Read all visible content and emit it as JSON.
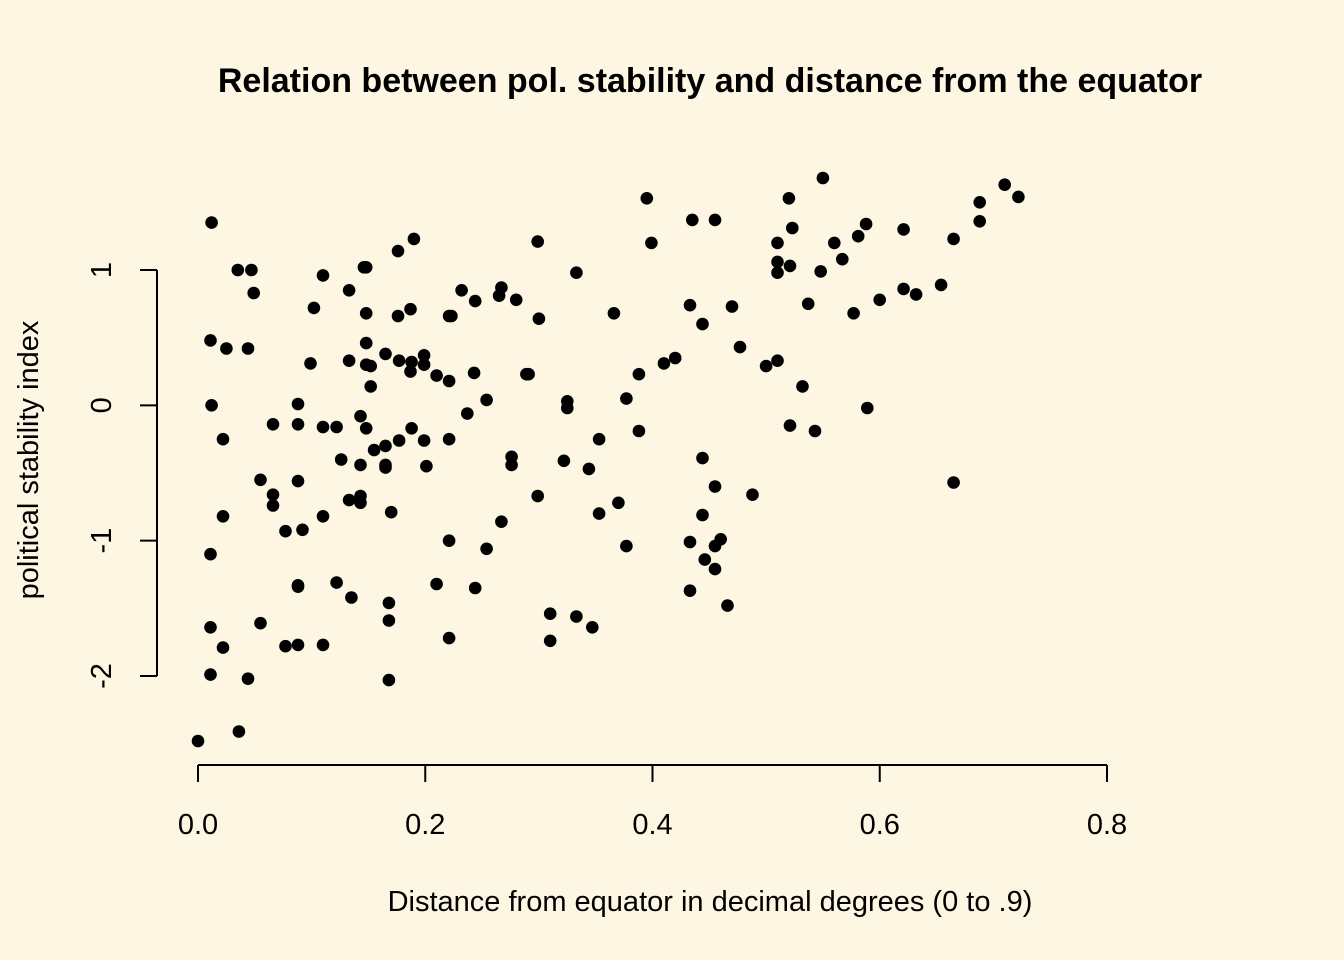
{
  "chart_data": {
    "type": "scatter",
    "title": "Relation between pol. stability and distance from the equator",
    "xlabel": "Distance from equator in decimal degrees (0 to .9)",
    "ylabel": "political stability index",
    "xlim": [
      0,
      0.8
    ],
    "ylim": [
      -2.5,
      1.7
    ],
    "x_ticks": [
      0,
      0.2,
      0.4,
      0.6,
      0.8
    ],
    "x_tick_labels": [
      "0.0",
      "0.2",
      "0.4",
      "0.6",
      "0.8"
    ],
    "y_ticks": [
      -2,
      -1,
      0,
      1
    ],
    "y_tick_labels": [
      "-2",
      "-1",
      "0",
      "1"
    ],
    "grid": false,
    "background": "#fdf6e3",
    "point_color": "#000000",
    "series": [
      {
        "points": [
          [
            0.0,
            -2.48
          ],
          [
            0.012,
            1.35
          ],
          [
            0.011,
            0.48
          ],
          [
            0.012,
            0.0
          ],
          [
            0.011,
            -1.1
          ],
          [
            0.011,
            -1.64
          ],
          [
            0.011,
            -1.99
          ],
          [
            0.022,
            -0.25
          ],
          [
            0.022,
            -0.82
          ],
          [
            0.022,
            -1.79
          ],
          [
            0.025,
            0.42
          ],
          [
            0.035,
            1.0
          ],
          [
            0.047,
            1.0
          ],
          [
            0.049,
            0.83
          ],
          [
            0.044,
            0.42
          ],
          [
            0.044,
            -2.02
          ],
          [
            0.036,
            -2.41
          ],
          [
            0.055,
            -0.55
          ],
          [
            0.055,
            -1.61
          ],
          [
            0.066,
            -0.14
          ],
          [
            0.066,
            -0.66
          ],
          [
            0.066,
            -0.74
          ],
          [
            0.077,
            -0.93
          ],
          [
            0.077,
            -1.78
          ],
          [
            0.088,
            0.01
          ],
          [
            0.088,
            -0.14
          ],
          [
            0.088,
            -0.56
          ],
          [
            0.088,
            -1.33
          ],
          [
            0.088,
            -1.34
          ],
          [
            0.088,
            -1.77
          ],
          [
            0.092,
            -0.92
          ],
          [
            0.099,
            0.31
          ],
          [
            0.102,
            0.72
          ],
          [
            0.11,
            0.96
          ],
          [
            0.11,
            -0.16
          ],
          [
            0.11,
            -0.82
          ],
          [
            0.11,
            -1.77
          ],
          [
            0.122,
            -0.16
          ],
          [
            0.122,
            -1.31
          ],
          [
            0.126,
            -0.4
          ],
          [
            0.133,
            0.85
          ],
          [
            0.133,
            0.33
          ],
          [
            0.133,
            -0.7
          ],
          [
            0.135,
            -1.42
          ],
          [
            0.143,
            -0.08
          ],
          [
            0.143,
            -0.44
          ],
          [
            0.143,
            -0.67
          ],
          [
            0.143,
            -0.72
          ],
          [
            0.146,
            1.02
          ],
          [
            0.148,
            1.02
          ],
          [
            0.148,
            0.68
          ],
          [
            0.148,
            0.46
          ],
          [
            0.148,
            0.3
          ],
          [
            0.148,
            -0.17
          ],
          [
            0.152,
            0.14
          ],
          [
            0.152,
            0.29
          ],
          [
            0.155,
            -0.33
          ],
          [
            0.165,
            0.38
          ],
          [
            0.165,
            -0.3
          ],
          [
            0.165,
            -0.44
          ],
          [
            0.165,
            -0.46
          ],
          [
            0.168,
            -1.46
          ],
          [
            0.168,
            -1.59
          ],
          [
            0.168,
            -2.03
          ],
          [
            0.17,
            -0.79
          ],
          [
            0.176,
            1.14
          ],
          [
            0.176,
            0.66
          ],
          [
            0.177,
            0.33
          ],
          [
            0.177,
            -0.26
          ],
          [
            0.187,
            0.71
          ],
          [
            0.187,
            0.25
          ],
          [
            0.188,
            0.32
          ],
          [
            0.188,
            -0.17
          ],
          [
            0.19,
            1.23
          ],
          [
            0.199,
            0.37
          ],
          [
            0.199,
            0.3
          ],
          [
            0.199,
            -0.26
          ],
          [
            0.201,
            -0.45
          ],
          [
            0.21,
            0.22
          ],
          [
            0.21,
            -1.32
          ],
          [
            0.221,
            0.66
          ],
          [
            0.221,
            0.18
          ],
          [
            0.221,
            -0.25
          ],
          [
            0.221,
            -1.0
          ],
          [
            0.221,
            -1.72
          ],
          [
            0.223,
            0.66
          ],
          [
            0.232,
            0.85
          ],
          [
            0.237,
            -0.06
          ],
          [
            0.243,
            0.24
          ],
          [
            0.244,
            0.77
          ],
          [
            0.244,
            -1.35
          ],
          [
            0.254,
            0.04
          ],
          [
            0.254,
            -1.06
          ],
          [
            0.265,
            0.81
          ],
          [
            0.267,
            0.87
          ],
          [
            0.267,
            -0.86
          ],
          [
            0.276,
            -0.38
          ],
          [
            0.276,
            -0.44
          ],
          [
            0.28,
            0.78
          ],
          [
            0.289,
            0.23
          ],
          [
            0.291,
            0.23
          ],
          [
            0.299,
            1.21
          ],
          [
            0.299,
            -0.67
          ],
          [
            0.3,
            0.64
          ],
          [
            0.31,
            -1.54
          ],
          [
            0.31,
            -1.74
          ],
          [
            0.322,
            -0.41
          ],
          [
            0.325,
            0.03
          ],
          [
            0.325,
            -0.02
          ],
          [
            0.333,
            0.98
          ],
          [
            0.333,
            -1.56
          ],
          [
            0.344,
            -0.47
          ],
          [
            0.347,
            -1.64
          ],
          [
            0.353,
            -0.8
          ],
          [
            0.353,
            -0.25
          ],
          [
            0.366,
            0.68
          ],
          [
            0.37,
            -0.72
          ],
          [
            0.377,
            0.05
          ],
          [
            0.377,
            -1.04
          ],
          [
            0.388,
            0.23
          ],
          [
            0.388,
            -0.19
          ],
          [
            0.395,
            1.53
          ],
          [
            0.399,
            1.2
          ],
          [
            0.41,
            0.31
          ],
          [
            0.42,
            0.35
          ],
          [
            0.433,
            0.74
          ],
          [
            0.433,
            -1.01
          ],
          [
            0.433,
            -1.37
          ],
          [
            0.435,
            1.37
          ],
          [
            0.444,
            0.6
          ],
          [
            0.444,
            -0.39
          ],
          [
            0.444,
            -0.81
          ],
          [
            0.446,
            -1.14
          ],
          [
            0.455,
            1.37
          ],
          [
            0.455,
            -0.6
          ],
          [
            0.455,
            -1.04
          ],
          [
            0.455,
            -1.21
          ],
          [
            0.46,
            -0.99
          ],
          [
            0.466,
            -1.48
          ],
          [
            0.47,
            0.73
          ],
          [
            0.477,
            0.43
          ],
          [
            0.488,
            -0.66
          ],
          [
            0.5,
            0.29
          ],
          [
            0.51,
            1.2
          ],
          [
            0.51,
            1.06
          ],
          [
            0.51,
            0.98
          ],
          [
            0.51,
            0.33
          ],
          [
            0.52,
            1.53
          ],
          [
            0.521,
            1.03
          ],
          [
            0.521,
            -0.15
          ],
          [
            0.523,
            1.31
          ],
          [
            0.532,
            0.14
          ],
          [
            0.537,
            0.75
          ],
          [
            0.543,
            -0.19
          ],
          [
            0.548,
            0.99
          ],
          [
            0.55,
            1.68
          ],
          [
            0.56,
            1.2
          ],
          [
            0.567,
            1.08
          ],
          [
            0.577,
            0.68
          ],
          [
            0.581,
            1.25
          ],
          [
            0.588,
            1.34
          ],
          [
            0.589,
            -0.02
          ],
          [
            0.6,
            0.78
          ],
          [
            0.621,
            1.3
          ],
          [
            0.621,
            0.86
          ],
          [
            0.632,
            0.82
          ],
          [
            0.654,
            0.89
          ],
          [
            0.665,
            1.23
          ],
          [
            0.665,
            -0.57
          ],
          [
            0.688,
            1.5
          ],
          [
            0.688,
            1.36
          ],
          [
            0.71,
            1.63
          ],
          [
            0.722,
            1.54
          ]
        ]
      }
    ]
  }
}
